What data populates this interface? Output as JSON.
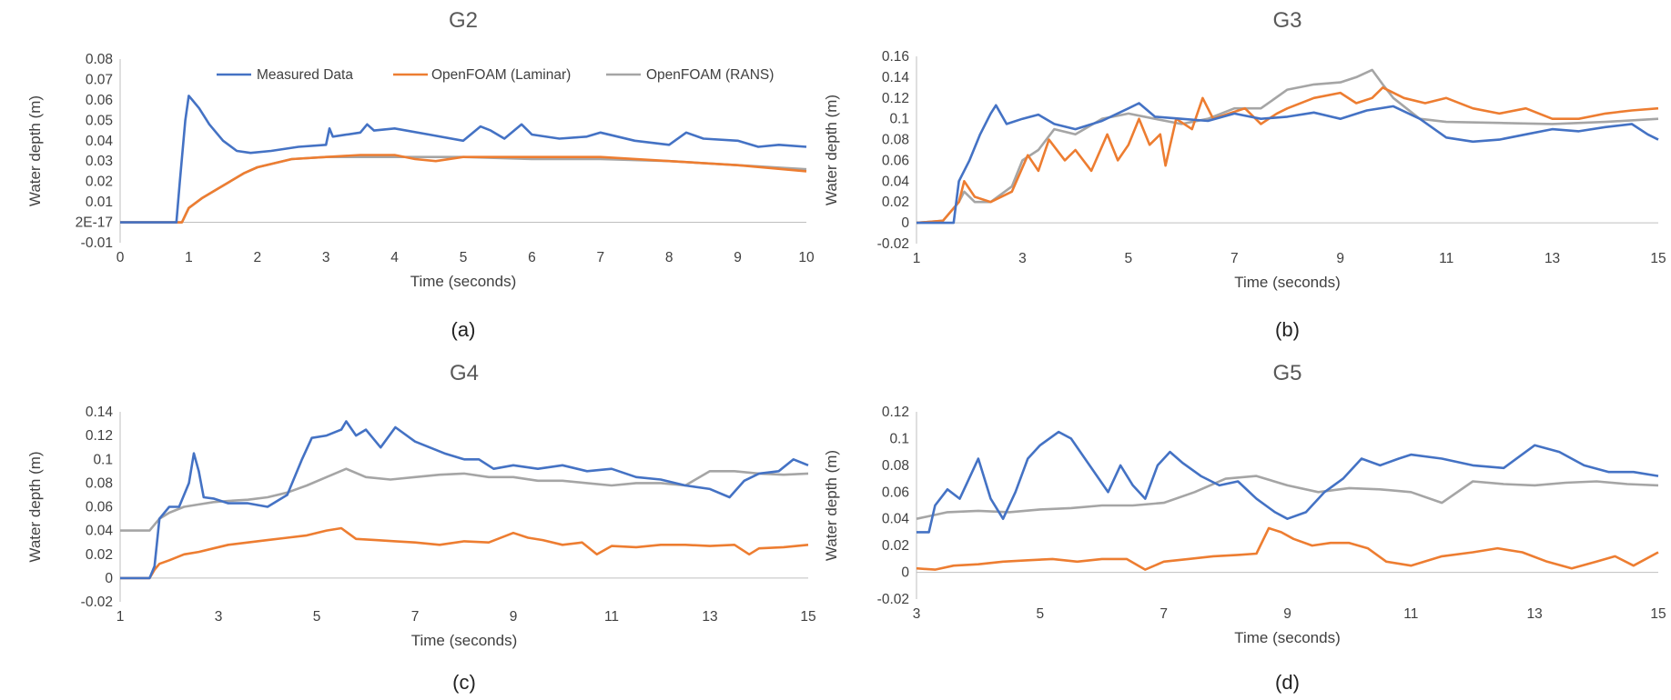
{
  "colors": {
    "measured": "#4472C4",
    "laminar": "#ED7D31",
    "rans": "#A5A5A5",
    "axis": "#BFBFBF"
  },
  "legend": [
    "Measured Data",
    "OpenFOAM (Laminar)",
    "OpenFOAM (RANS)"
  ],
  "chart_data": [
    {
      "id": "a",
      "type": "line",
      "title": "G2",
      "caption": "(a)",
      "xlabel": "Time (seconds)",
      "ylabel": "Water depth (m)",
      "xlim": [
        0,
        10
      ],
      "ylim": [
        -0.01,
        0.08
      ],
      "xticks": [
        0,
        1,
        2,
        3,
        4,
        5,
        6,
        7,
        8,
        9,
        10
      ],
      "yticks": [
        -0.01,
        0,
        0.01,
        0.02,
        0.03,
        0.04,
        0.05,
        0.06,
        0.07,
        0.08
      ],
      "ytick_labels": [
        "-0.01",
        "2E-17",
        "0.01",
        "0.02",
        "0.03",
        "0.04",
        "0.05",
        "0.06",
        "0.07",
        "0.08"
      ],
      "series": [
        {
          "name": "Measured Data",
          "x": [
            0,
            0.82,
            0.87,
            0.95,
            1.0,
            1.05,
            1.15,
            1.3,
            1.5,
            1.7,
            1.9,
            2.2,
            2.6,
            3.0,
            3.05,
            3.1,
            3.5,
            3.6,
            3.7,
            4.0,
            4.5,
            5.0,
            5.25,
            5.4,
            5.6,
            5.85,
            6.0,
            6.4,
            6.8,
            7.0,
            7.5,
            8.0,
            8.25,
            8.5,
            9.0,
            9.3,
            9.6,
            10
          ],
          "y": [
            0,
            0,
            0.02,
            0.05,
            0.062,
            0.06,
            0.056,
            0.048,
            0.04,
            0.035,
            0.034,
            0.035,
            0.037,
            0.038,
            0.046,
            0.042,
            0.044,
            0.048,
            0.045,
            0.046,
            0.043,
            0.04,
            0.047,
            0.045,
            0.041,
            0.048,
            0.043,
            0.041,
            0.042,
            0.044,
            0.04,
            0.038,
            0.044,
            0.041,
            0.04,
            0.037,
            0.038,
            0.037
          ]
        },
        {
          "name": "OpenFOAM (Laminar)",
          "x": [
            0,
            0.9,
            1.0,
            1.2,
            1.4,
            1.6,
            1.8,
            2.0,
            2.5,
            3.0,
            3.5,
            4.0,
            4.3,
            4.6,
            5.0,
            6.0,
            7.0,
            8.0,
            9.0,
            10
          ],
          "y": [
            0,
            0,
            0.007,
            0.012,
            0.016,
            0.02,
            0.024,
            0.027,
            0.031,
            0.032,
            0.033,
            0.033,
            0.031,
            0.03,
            0.032,
            0.032,
            0.032,
            0.03,
            0.028,
            0.025
          ]
        },
        {
          "name": "OpenFOAM (RANS)",
          "x": [
            0,
            0.9,
            1.0,
            1.2,
            1.4,
            1.6,
            1.8,
            2.0,
            2.5,
            3.0,
            3.5,
            4.0,
            5.0,
            6.0,
            7.0,
            8.0,
            9.0,
            10
          ],
          "y": [
            0,
            0,
            0.007,
            0.012,
            0.016,
            0.02,
            0.024,
            0.027,
            0.031,
            0.032,
            0.032,
            0.032,
            0.032,
            0.031,
            0.031,
            0.03,
            0.028,
            0.026
          ]
        }
      ]
    },
    {
      "id": "b",
      "type": "line",
      "title": "G3",
      "caption": "(b)",
      "xlabel": "Time (seconds)",
      "ylabel": "Water depth (m)",
      "xlim": [
        1,
        15
      ],
      "ylim": [
        -0.02,
        0.16
      ],
      "xticks": [
        1,
        3,
        5,
        7,
        9,
        11,
        13,
        15
      ],
      "yticks": [
        -0.02,
        0,
        0.02,
        0.04,
        0.06,
        0.08,
        0.1,
        0.12,
        0.14,
        0.16
      ],
      "ytick_labels": [
        "-0.02",
        "0",
        "0.02",
        "0.04",
        "0.06",
        "0.08",
        "0.1",
        "0.12",
        "0.14",
        "0.16"
      ],
      "series": [
        {
          "name": "Measured Data",
          "x": [
            1,
            1.4,
            1.7,
            1.8,
            2.0,
            2.2,
            2.4,
            2.5,
            2.7,
            3.0,
            3.3,
            3.6,
            4.0,
            4.5,
            5.0,
            5.2,
            5.5,
            6.0,
            6.5,
            7.0,
            7.5,
            8.0,
            8.5,
            9.0,
            9.5,
            10.0,
            10.5,
            11.0,
            11.5,
            12.0,
            12.5,
            13.0,
            13.5,
            14.0,
            14.5,
            14.8,
            15
          ],
          "y": [
            0,
            0,
            0,
            0.04,
            0.06,
            0.085,
            0.105,
            0.113,
            0.095,
            0.1,
            0.104,
            0.095,
            0.09,
            0.098,
            0.11,
            0.115,
            0.102,
            0.1,
            0.098,
            0.105,
            0.1,
            0.102,
            0.106,
            0.1,
            0.108,
            0.112,
            0.1,
            0.082,
            0.078,
            0.08,
            0.085,
            0.09,
            0.088,
            0.092,
            0.095,
            0.085,
            0.08
          ]
        },
        {
          "name": "OpenFOAM (Laminar)",
          "x": [
            1,
            1.5,
            1.8,
            1.9,
            2.1,
            2.4,
            2.8,
            3.1,
            3.3,
            3.5,
            3.8,
            4.0,
            4.3,
            4.6,
            4.8,
            5.0,
            5.2,
            5.4,
            5.6,
            5.7,
            5.9,
            6.2,
            6.4,
            6.6,
            6.9,
            7.2,
            7.5,
            7.8,
            8.0,
            8.5,
            9.0,
            9.3,
            9.6,
            9.8,
            10.2,
            10.6,
            11.0,
            11.5,
            12.0,
            12.5,
            13.0,
            13.5,
            14.0,
            14.5,
            15
          ],
          "y": [
            0,
            0.002,
            0.02,
            0.04,
            0.025,
            0.02,
            0.03,
            0.065,
            0.05,
            0.08,
            0.06,
            0.07,
            0.05,
            0.085,
            0.06,
            0.075,
            0.1,
            0.075,
            0.085,
            0.055,
            0.1,
            0.09,
            0.12,
            0.1,
            0.105,
            0.11,
            0.095,
            0.105,
            0.11,
            0.12,
            0.125,
            0.115,
            0.12,
            0.13,
            0.12,
            0.115,
            0.12,
            0.11,
            0.105,
            0.11,
            0.1,
            0.1,
            0.105,
            0.108,
            0.11
          ]
        },
        {
          "name": "OpenFOAM (RANS)",
          "x": [
            1,
            1.5,
            1.8,
            1.9,
            2.1,
            2.4,
            2.8,
            3.0,
            3.3,
            3.6,
            4.0,
            4.5,
            5.0,
            5.5,
            6.0,
            6.5,
            7.0,
            7.5,
            8.0,
            8.5,
            9.0,
            9.3,
            9.6,
            9.8,
            10.0,
            10.5,
            11.0,
            12.0,
            13.0,
            14.0,
            15
          ],
          "y": [
            0,
            0.002,
            0.02,
            0.03,
            0.02,
            0.02,
            0.035,
            0.06,
            0.07,
            0.09,
            0.085,
            0.1,
            0.105,
            0.1,
            0.095,
            0.1,
            0.11,
            0.11,
            0.128,
            0.133,
            0.135,
            0.14,
            0.147,
            0.133,
            0.12,
            0.1,
            0.097,
            0.096,
            0.095,
            0.097,
            0.1
          ]
        }
      ]
    },
    {
      "id": "c",
      "type": "line",
      "title": "G4",
      "caption": "(c)",
      "xlabel": "Time (seconds)",
      "ylabel": "Water depth (m)",
      "xlim": [
        1,
        15
      ],
      "ylim": [
        -0.02,
        0.14
      ],
      "xticks": [
        1,
        3,
        5,
        7,
        9,
        11,
        13,
        15
      ],
      "yticks": [
        -0.02,
        0,
        0.02,
        0.04,
        0.06,
        0.08,
        0.1,
        0.12,
        0.14
      ],
      "ytick_labels": [
        "-0.02",
        "0",
        "0.02",
        "0.04",
        "0.06",
        "0.08",
        "0.1",
        "0.12",
        "0.14"
      ],
      "series": [
        {
          "name": "Measured Data",
          "x": [
            1,
            1.6,
            1.7,
            1.8,
            2.0,
            2.2,
            2.4,
            2.5,
            2.6,
            2.7,
            2.9,
            3.2,
            3.6,
            4.0,
            4.4,
            4.7,
            4.9,
            5.2,
            5.5,
            5.6,
            5.8,
            6.0,
            6.3,
            6.6,
            7.0,
            7.3,
            7.6,
            8.0,
            8.3,
            8.6,
            9.0,
            9.5,
            10.0,
            10.5,
            11.0,
            11.5,
            12.0,
            12.5,
            13.0,
            13.4,
            13.7,
            14.0,
            14.4,
            14.7,
            15
          ],
          "y": [
            0,
            0,
            0.01,
            0.05,
            0.06,
            0.06,
            0.08,
            0.105,
            0.09,
            0.068,
            0.067,
            0.063,
            0.063,
            0.06,
            0.07,
            0.1,
            0.118,
            0.12,
            0.125,
            0.132,
            0.12,
            0.125,
            0.11,
            0.127,
            0.115,
            0.11,
            0.105,
            0.1,
            0.1,
            0.092,
            0.095,
            0.092,
            0.095,
            0.09,
            0.092,
            0.085,
            0.083,
            0.078,
            0.075,
            0.068,
            0.082,
            0.088,
            0.09,
            0.1,
            0.095
          ]
        },
        {
          "name": "OpenFOAM (Laminar)",
          "x": [
            1,
            1.6,
            1.7,
            1.8,
            2.0,
            2.3,
            2.6,
            2.9,
            3.2,
            3.6,
            4.0,
            4.4,
            4.8,
            5.2,
            5.5,
            5.8,
            6.2,
            6.6,
            7.0,
            7.5,
            8.0,
            8.5,
            9.0,
            9.3,
            9.6,
            10.0,
            10.4,
            10.7,
            11.0,
            11.5,
            12.0,
            12.5,
            13.0,
            13.5,
            13.8,
            14.0,
            14.5,
            15
          ],
          "y": [
            0,
            0,
            0.007,
            0.012,
            0.015,
            0.02,
            0.022,
            0.025,
            0.028,
            0.03,
            0.032,
            0.034,
            0.036,
            0.04,
            0.042,
            0.033,
            0.032,
            0.031,
            0.03,
            0.028,
            0.031,
            0.03,
            0.038,
            0.034,
            0.032,
            0.028,
            0.03,
            0.02,
            0.027,
            0.026,
            0.028,
            0.028,
            0.027,
            0.028,
            0.02,
            0.025,
            0.026,
            0.028
          ]
        },
        {
          "name": "OpenFOAM (RANS)",
          "x": [
            1,
            1.6,
            1.8,
            2.0,
            2.3,
            2.6,
            2.9,
            3.2,
            3.6,
            4.0,
            4.4,
            4.8,
            5.2,
            5.6,
            6.0,
            6.5,
            7.0,
            7.5,
            8.0,
            8.5,
            9.0,
            9.5,
            10.0,
            10.5,
            11.0,
            11.5,
            12.0,
            12.5,
            13.0,
            13.5,
            14.0,
            14.5,
            15
          ],
          "y": [
            0.04,
            0.04,
            0.05,
            0.055,
            0.06,
            0.062,
            0.064,
            0.065,
            0.066,
            0.068,
            0.072,
            0.078,
            0.085,
            0.092,
            0.085,
            0.083,
            0.085,
            0.087,
            0.088,
            0.085,
            0.085,
            0.082,
            0.082,
            0.08,
            0.078,
            0.08,
            0.08,
            0.078,
            0.09,
            0.09,
            0.088,
            0.087,
            0.088
          ]
        }
      ]
    },
    {
      "id": "d",
      "type": "line",
      "title": "G5",
      "caption": "(d)",
      "xlabel": "Time (seconds)",
      "ylabel": "Water depth (m)",
      "xlim": [
        3,
        15
      ],
      "ylim": [
        -0.02,
        0.12
      ],
      "xticks": [
        3,
        5,
        7,
        9,
        11,
        13,
        15
      ],
      "yticks": [
        -0.02,
        0,
        0.02,
        0.04,
        0.06,
        0.08,
        0.1,
        0.12
      ],
      "ytick_labels": [
        "-0.02",
        "0",
        "0.02",
        "0.04",
        "0.06",
        "0.08",
        "0.1",
        "0.12"
      ],
      "series": [
        {
          "name": "Measured Data",
          "x": [
            3,
            3.2,
            3.3,
            3.5,
            3.7,
            3.8,
            4.0,
            4.2,
            4.4,
            4.6,
            4.8,
            5.0,
            5.3,
            5.5,
            5.8,
            6.1,
            6.3,
            6.5,
            6.7,
            6.9,
            7.1,
            7.3,
            7.6,
            7.9,
            8.2,
            8.5,
            8.8,
            9.0,
            9.3,
            9.6,
            9.9,
            10.2,
            10.5,
            10.8,
            11.0,
            11.5,
            12.0,
            12.5,
            13.0,
            13.4,
            13.8,
            14.2,
            14.6,
            15
          ],
          "y": [
            0.03,
            0.03,
            0.05,
            0.062,
            0.055,
            0.065,
            0.085,
            0.055,
            0.04,
            0.06,
            0.085,
            0.095,
            0.105,
            0.1,
            0.08,
            0.06,
            0.08,
            0.065,
            0.055,
            0.08,
            0.09,
            0.082,
            0.072,
            0.065,
            0.068,
            0.055,
            0.045,
            0.04,
            0.045,
            0.06,
            0.07,
            0.085,
            0.08,
            0.085,
            0.088,
            0.085,
            0.08,
            0.078,
            0.095,
            0.09,
            0.08,
            0.075,
            0.075,
            0.072
          ]
        },
        {
          "name": "OpenFOAM (Laminar)",
          "x": [
            3,
            3.3,
            3.6,
            4.0,
            4.4,
            4.8,
            5.2,
            5.6,
            6.0,
            6.4,
            6.7,
            7.0,
            7.4,
            7.8,
            8.2,
            8.5,
            8.7,
            8.9,
            9.1,
            9.4,
            9.7,
            10.0,
            10.3,
            10.6,
            11.0,
            11.5,
            12.0,
            12.4,
            12.8,
            13.2,
            13.6,
            14.0,
            14.3,
            14.6,
            15
          ],
          "y": [
            0.003,
            0.002,
            0.005,
            0.006,
            0.008,
            0.009,
            0.01,
            0.008,
            0.01,
            0.01,
            0.002,
            0.008,
            0.01,
            0.012,
            0.013,
            0.014,
            0.033,
            0.03,
            0.025,
            0.02,
            0.022,
            0.022,
            0.018,
            0.008,
            0.005,
            0.012,
            0.015,
            0.018,
            0.015,
            0.008,
            0.003,
            0.008,
            0.012,
            0.005,
            0.015
          ]
        },
        {
          "name": "OpenFOAM (RANS)",
          "x": [
            3,
            3.5,
            4.0,
            4.5,
            5.0,
            5.5,
            6.0,
            6.5,
            7.0,
            7.5,
            8.0,
            8.5,
            9.0,
            9.5,
            10.0,
            10.5,
            11.0,
            11.5,
            12.0,
            12.5,
            13.0,
            13.5,
            14.0,
            14.5,
            15
          ],
          "y": [
            0.04,
            0.045,
            0.046,
            0.045,
            0.047,
            0.048,
            0.05,
            0.05,
            0.052,
            0.06,
            0.07,
            0.072,
            0.065,
            0.06,
            0.063,
            0.062,
            0.06,
            0.052,
            0.068,
            0.066,
            0.065,
            0.067,
            0.068,
            0.066,
            0.065
          ]
        }
      ]
    }
  ]
}
